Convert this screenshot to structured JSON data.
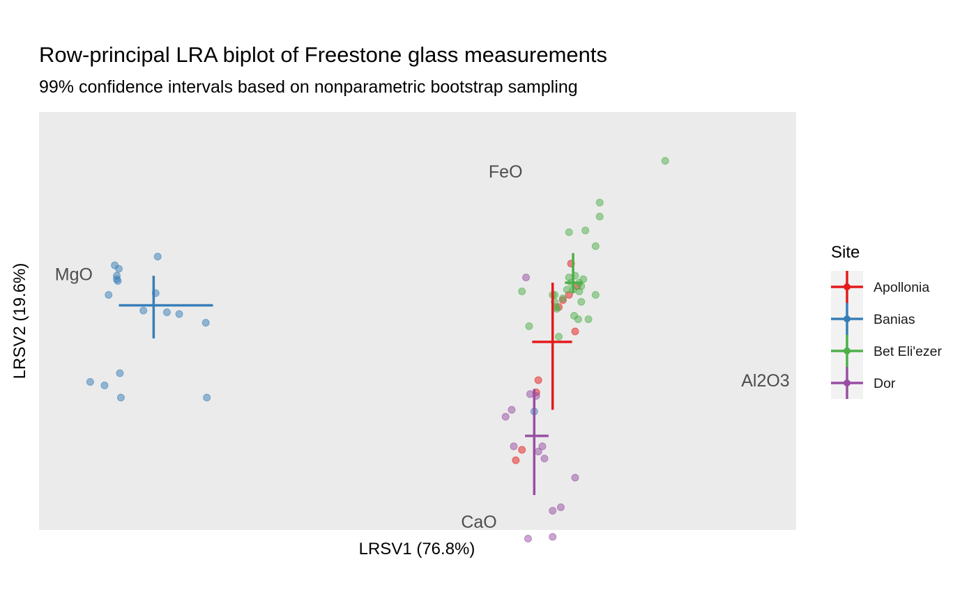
{
  "chart_data": {
    "type": "scatter",
    "title": "Row-principal LRA biplot of Freestone glass measurements",
    "subtitle": "99% confidence intervals based on nonparametric bootstrap sampling",
    "xlabel": "LRSV1 (76.8%)",
    "ylabel": "LRSV2 (19.6%)",
    "xlim": [
      -1.65,
      2.05
    ],
    "ylim": [
      -1.2,
      1.2
    ],
    "grid": false,
    "legend": {
      "title": "Site",
      "position": "right"
    },
    "variables": [
      {
        "name": "MgO",
        "x": -1.48,
        "y": 0.27
      },
      {
        "name": "FeO",
        "x": 0.63,
        "y": 0.86
      },
      {
        "name": "Al2O3",
        "x": 1.9,
        "y": -0.34
      },
      {
        "name": "CaO",
        "x": 0.5,
        "y": -1.3
      }
    ],
    "series": [
      {
        "name": "Apollonia",
        "color": "#e41a1c",
        "center": [
          0.86,
          -0.12
        ],
        "interval_x": [
          0.76,
          0.955
        ],
        "interval_y": [
          -0.51,
          0.22
        ],
        "points": [
          [
            0.95,
            0.33
          ],
          [
            0.98,
            0.2
          ],
          [
            0.94,
            0.15
          ],
          [
            0.91,
            0.12
          ],
          [
            0.89,
            0.08
          ],
          [
            0.97,
            -0.06
          ],
          [
            0.79,
            -0.34
          ],
          [
            0.78,
            -0.41
          ],
          [
            0.71,
            -0.74
          ],
          [
            0.68,
            -0.8
          ]
        ]
      },
      {
        "name": "Banias",
        "color": "#377eb8",
        "center": [
          -1.09,
          0.09
        ],
        "interval_x": [
          -1.26,
          -0.8
        ],
        "interval_y": [
          -0.1,
          0.26
        ],
        "points": [
          [
            -1.07,
            0.37
          ],
          [
            -1.28,
            0.32
          ],
          [
            -1.26,
            0.3
          ],
          [
            -1.27,
            0.26
          ],
          [
            -1.27,
            0.24
          ],
          [
            -1.265,
            0.23
          ],
          [
            -1.31,
            0.15
          ],
          [
            -1.08,
            0.16
          ],
          [
            -1.14,
            0.06
          ],
          [
            -1.025,
            0.05
          ],
          [
            -0.965,
            0.04
          ],
          [
            -0.835,
            -0.01
          ],
          [
            -1.255,
            -0.3
          ],
          [
            -1.4,
            -0.35
          ],
          [
            -1.33,
            -0.37
          ],
          [
            -1.25,
            -0.44
          ],
          [
            -0.83,
            -0.44
          ],
          [
            0.77,
            -0.52
          ]
        ]
      },
      {
        "name": "Bet Eli'ezer",
        "color": "#4daf4a",
        "center": [
          0.96,
          0.22
        ],
        "interval_x": [
          0.92,
          1.005
        ],
        "interval_y": [
          0.16,
          0.39
        ],
        "points": [
          [
            1.41,
            0.92
          ],
          [
            1.09,
            0.68
          ],
          [
            1.09,
            0.6
          ],
          [
            1.02,
            0.52
          ],
          [
            0.94,
            0.51
          ],
          [
            1.07,
            0.43
          ],
          [
            0.94,
            0.25
          ],
          [
            0.97,
            0.26
          ],
          [
            1.01,
            0.24
          ],
          [
            0.99,
            0.22
          ],
          [
            1.0,
            0.2
          ],
          [
            0.93,
            0.18
          ],
          [
            0.96,
            0.18
          ],
          [
            0.99,
            0.17
          ],
          [
            0.71,
            0.17
          ],
          [
            0.91,
            0.13
          ],
          [
            0.87,
            0.15
          ],
          [
            1.07,
            0.15
          ],
          [
            0.95,
            0.22
          ],
          [
            0.86,
            0.15
          ],
          [
            0.87,
            0.11
          ],
          [
            1.0,
            0.11
          ],
          [
            0.875,
            0.08
          ],
          [
            0.88,
            0.07
          ],
          [
            0.965,
            0.03
          ],
          [
            0.985,
            0.01
          ],
          [
            1.035,
            0.01
          ],
          [
            0.745,
            -0.03
          ],
          [
            0.89,
            -0.09
          ]
        ]
      },
      {
        "name": "Dor",
        "color": "#984ea3",
        "center": [
          0.77,
          -0.66
        ],
        "interval_x": [
          0.725,
          0.84
        ],
        "interval_y": [
          -1.0,
          -0.39
        ],
        "points": [
          [
            0.73,
            0.25
          ],
          [
            0.75,
            -0.42
          ],
          [
            0.78,
            -0.43
          ],
          [
            0.66,
            -0.51
          ],
          [
            0.63,
            -0.55
          ],
          [
            0.67,
            -0.72
          ],
          [
            0.81,
            -0.72
          ],
          [
            0.79,
            -0.75
          ],
          [
            0.82,
            -0.79
          ],
          [
            0.97,
            -0.9
          ],
          [
            0.9,
            -1.07
          ],
          [
            0.86,
            -1.09
          ],
          [
            0.86,
            -1.24
          ],
          [
            0.74,
            -1.25
          ]
        ]
      }
    ]
  }
}
